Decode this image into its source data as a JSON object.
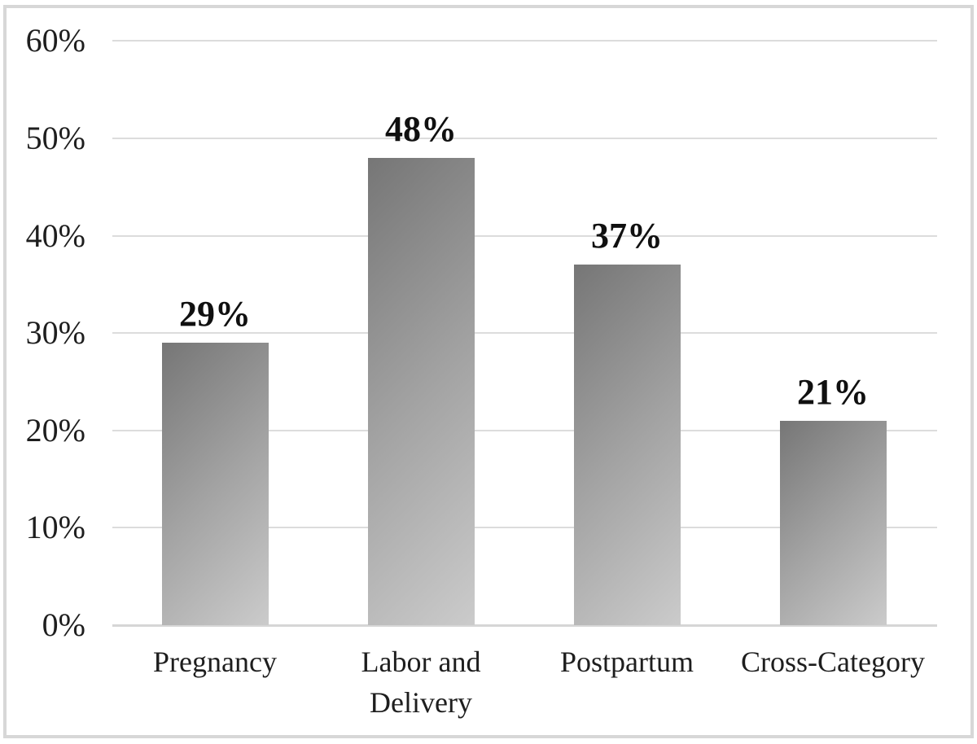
{
  "chart_data": {
    "type": "bar",
    "title": "",
    "categories": [
      "Pregnancy",
      "Labor and Delivery",
      "Postpartum",
      "Cross-Category"
    ],
    "values": [
      29,
      48,
      37,
      21
    ],
    "data_labels": [
      "29%",
      "48%",
      "37%",
      "21%"
    ],
    "y_tick_labels": [
      "60%",
      "50%",
      "40%",
      "30%",
      "20%",
      "10%",
      "0%"
    ],
    "y_tick_values": [
      60,
      50,
      40,
      30,
      20,
      10,
      0
    ],
    "xlabel": "",
    "ylabel": "",
    "ylim": [
      0,
      60
    ],
    "grid": true,
    "legend": "none",
    "colors": {
      "bar_gradient_start": "#767676",
      "bar_gradient_end": "#cbcbcb",
      "gridline": "#dcdcdc",
      "axis_line": "#d6d6d6",
      "frame_border": "#d7d7d7",
      "text": "#1e1e1e",
      "data_label_text": "#101010",
      "background": "#ffffff"
    }
  }
}
